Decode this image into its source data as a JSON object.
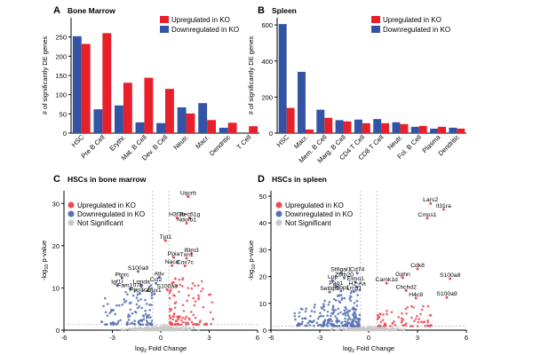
{
  "chart_data": [
    {
      "type": "bar",
      "panel": "A",
      "title": "Bone Marrow",
      "ylabel": "# of significantly DE genes",
      "ylim": [
        0,
        300
      ],
      "yticks": [
        0,
        50,
        100,
        150,
        200,
        250
      ],
      "grid": false,
      "legend": "top-right",
      "categories": [
        "HSC",
        "Pre B Cell",
        "Erythr.",
        "Mat. B Cell",
        "Dev. B Cell",
        "Neutr.",
        "Macr.",
        "Dendritic",
        "T Cell"
      ],
      "series": [
        {
          "name": "Upregulated in KO",
          "color": "#e8202a",
          "values": [
            232,
            260,
            131,
            144,
            115,
            51,
            34,
            27,
            18
          ]
        },
        {
          "name": "Downregulated in KO",
          "color": "#3353a4",
          "values": [
            252,
            62,
            72,
            28,
            26,
            67,
            78,
            14,
            0
          ]
        }
      ]
    },
    {
      "type": "bar",
      "panel": "B",
      "title": "Spleen",
      "ylabel": "# of significantly DE genes",
      "ylim": [
        0,
        640
      ],
      "yticks": [
        0,
        200,
        400,
        600
      ],
      "grid": false,
      "legend": "top-right",
      "categories": [
        "HSC",
        "Macr.",
        "Mem. B Cell",
        "Marg. B Cell",
        "CD4 T Cell",
        "CD8 T Cell",
        "Neutr.",
        "Fol. B Cell",
        "Plasma",
        "Dendritic"
      ],
      "series": [
        {
          "name": "Upregulated in KO",
          "color": "#e8202a",
          "values": [
            140,
            20,
            85,
            65,
            55,
            55,
            50,
            40,
            35,
            25
          ]
        },
        {
          "name": "Downregulated in KO",
          "color": "#3353a4",
          "values": [
            605,
            340,
            130,
            72,
            75,
            78,
            60,
            35,
            25,
            30
          ]
        }
      ]
    },
    {
      "type": "scatter",
      "panel": "C",
      "title": "HSCs in bone marrow",
      "xlabel": "log2 Fold Change",
      "ylabel": "-log10 p-value",
      "xlim": [
        -6,
        6
      ],
      "ylim": [
        0,
        33
      ],
      "xticks": [
        -6,
        -3,
        0,
        3,
        6
      ],
      "yticks": [
        0,
        10,
        20,
        30
      ],
      "grid": false,
      "legend": "top-left",
      "legend_entries": [
        {
          "name": "Upregulated in KO",
          "color": "#ec4b54"
        },
        {
          "name": "Downregulated in KO",
          "color": "#5670b4"
        },
        {
          "name": "Not Significant",
          "color": "#c8c8c8"
        }
      ],
      "annotations": [
        {
          "label": "Uqcrb",
          "x": 1.7,
          "y": 31.6
        },
        {
          "label": "H3f3b",
          "x": 1.0,
          "y": 26.6
        },
        {
          "label": "Sec61g",
          "x": 1.8,
          "y": 26.6
        },
        {
          "label": "Ndufb1",
          "x": 1.6,
          "y": 25.3
        },
        {
          "label": "Tpt1",
          "x": 0.3,
          "y": 21.2
        },
        {
          "label": "Ifitm3",
          "x": 1.9,
          "y": 18.1
        },
        {
          "label": "Ppia",
          "x": 0.8,
          "y": 17.2
        },
        {
          "label": "Txn1",
          "x": 1.6,
          "y": 17.0
        },
        {
          "label": "Nacα",
          "x": 0.7,
          "y": 15.3
        },
        {
          "label": "Cox7c",
          "x": 1.5,
          "y": 15.2
        },
        {
          "label": "S100a9",
          "x": -1.4,
          "y": 13.9
        },
        {
          "label": "Atlv",
          "x": -0.1,
          "y": 12.5
        },
        {
          "label": "Ptprc",
          "x": -2.4,
          "y": 12.3
        },
        {
          "label": "Ccl2",
          "x": -0.3,
          "y": 11.1
        },
        {
          "label": "Igf1r",
          "x": -2.7,
          "y": 10.6
        },
        {
          "label": "Lrmda",
          "x": -1.2,
          "y": 10.6
        },
        {
          "label": "Fam107b",
          "x": -1.9,
          "y": 9.8
        },
        {
          "label": "S100a8",
          "x": 0.4,
          "y": 9.6
        },
        {
          "label": "Ppp3ca",
          "x": -1.3,
          "y": 8.7
        },
        {
          "label": "Dux1",
          "x": -0.4,
          "y": 8.6
        }
      ]
    },
    {
      "type": "scatter",
      "panel": "D",
      "title": "HSCs in spleen",
      "xlabel": "log2 Fold Change",
      "ylabel": "-log10 p-value",
      "xlim": [
        -6,
        6
      ],
      "ylim": [
        0,
        52
      ],
      "xticks": [
        -6,
        -3,
        0,
        3,
        6
      ],
      "yticks": [
        0,
        10,
        20,
        30,
        40,
        50
      ],
      "grid": false,
      "legend": "top-left",
      "legend_entries": [
        {
          "name": "Upregulated in KO",
          "color": "#ec4b54"
        },
        {
          "name": "Downregulated in KO",
          "color": "#5670b4"
        },
        {
          "name": "Not Significant",
          "color": "#c8c8c8"
        }
      ],
      "annotations": [
        {
          "label": "Lars2",
          "x": 3.8,
          "y": 47.3
        },
        {
          "label": "Il31ra",
          "x": 4.6,
          "y": 45.1
        },
        {
          "label": "Cmss1",
          "x": 3.6,
          "y": 41.8
        },
        {
          "label": "Cdk8",
          "x": 3.0,
          "y": 22.8
        },
        {
          "label": "St6gal1",
          "x": -1.7,
          "y": 21.3
        },
        {
          "label": "Cd74",
          "x": -0.7,
          "y": 21.3
        },
        {
          "label": "Gphn",
          "x": 2.1,
          "y": 19.6
        },
        {
          "label": "S100a8",
          "x": 5.0,
          "y": 19.2
        },
        {
          "label": "Zbtb20",
          "x": -1.5,
          "y": 19.4
        },
        {
          "label": "Lpp",
          "x": -2.2,
          "y": 18.5
        },
        {
          "label": "Elmo1",
          "x": -0.8,
          "y": 17.9
        },
        {
          "label": "Camk1d",
          "x": 1.1,
          "y": 17.5
        },
        {
          "label": "Pag1",
          "x": -2.0,
          "y": 16.3
        },
        {
          "label": "H2-Aa",
          "x": -0.7,
          "y": 16.1
        },
        {
          "label": "Fnbp1",
          "x": -1.7,
          "y": 14.6
        },
        {
          "label": "Lrch1",
          "x": -0.9,
          "y": 14.4
        },
        {
          "label": "Chchd2",
          "x": 2.3,
          "y": 14.8
        },
        {
          "label": "Setbp1",
          "x": -2.4,
          "y": 14.2
        },
        {
          "label": "S100a9",
          "x": 4.8,
          "y": 12.2
        },
        {
          "label": "H4c8",
          "x": 2.9,
          "y": 12.0
        }
      ]
    }
  ]
}
